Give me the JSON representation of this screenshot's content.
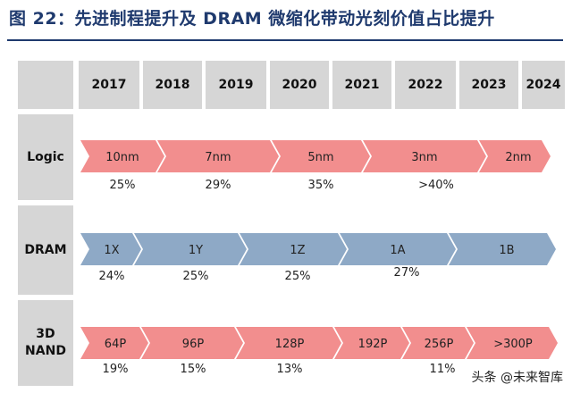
{
  "title": "图 22：先进制程提升及 DRAM 微缩化带动光刻价值占比提升",
  "years": [
    "2017",
    "2018",
    "2019",
    "2020",
    "2021",
    "2022",
    "2023",
    "2024"
  ],
  "rows": [
    {
      "label": "Logic",
      "color": "#f28e8e",
      "stages": [
        {
          "label": "10nm",
          "pct": "25%"
        },
        {
          "label": "7nm",
          "pct": "29%"
        },
        {
          "label": "5nm",
          "pct": "35%"
        },
        {
          "label": "3nm",
          "pct": ">40%"
        },
        {
          "label": "2nm",
          "pct": ""
        }
      ]
    },
    {
      "label": "DRAM",
      "color": "#8ea9c6",
      "stages": [
        {
          "label": "1X",
          "pct": "24%"
        },
        {
          "label": "1Y",
          "pct": "25%"
        },
        {
          "label": "1Z",
          "pct": "25%"
        },
        {
          "label": "1A",
          "pct": "27%"
        },
        {
          "label": "1B",
          "pct": ""
        }
      ]
    },
    {
      "label_line1": "3D",
      "label_line2": "NAND",
      "color": "#f28e8e",
      "stages": [
        {
          "label": "64P",
          "pct": "19%"
        },
        {
          "label": "96P",
          "pct": "15%"
        },
        {
          "label": "128P",
          "pct": "13%"
        },
        {
          "label": "192P",
          "pct": ""
        },
        {
          "label": "256P",
          "pct": "11%"
        },
        {
          "label": ">300P",
          "pct": ""
        }
      ]
    }
  ],
  "watermark": "头条 @未来智库"
}
